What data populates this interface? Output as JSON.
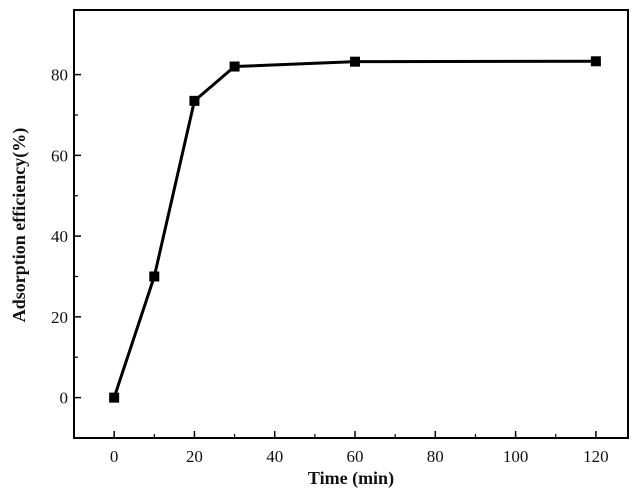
{
  "chart_data": {
    "type": "line",
    "title": "",
    "xlabel": "Time (min)",
    "ylabel": "Adsorption efficiency(%)",
    "xlim": [
      -10,
      128
    ],
    "ylim": [
      -10,
      96
    ],
    "x_ticks": [
      0,
      20,
      40,
      60,
      80,
      100,
      120
    ],
    "y_ticks": [
      0,
      20,
      40,
      60,
      80
    ],
    "grid": false,
    "legend": "none",
    "series": [
      {
        "x": [
          0,
          10,
          20,
          30,
          60,
          120
        ],
        "y": [
          0,
          30,
          73.5,
          82,
          83.2,
          83.3
        ],
        "color": "#000000",
        "marker": "square"
      }
    ]
  }
}
